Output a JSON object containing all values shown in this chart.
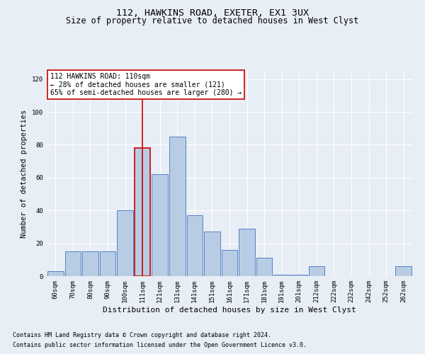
{
  "title": "112, HAWKINS ROAD, EXETER, EX1 3UX",
  "subtitle": "Size of property relative to detached houses in West Clyst",
  "xlabel": "Distribution of detached houses by size in West Clyst",
  "ylabel": "Number of detached properties",
  "categories": [
    "60sqm",
    "70sqm",
    "80sqm",
    "90sqm",
    "100sqm",
    "111sqm",
    "121sqm",
    "131sqm",
    "141sqm",
    "151sqm",
    "161sqm",
    "171sqm",
    "181sqm",
    "191sqm",
    "201sqm",
    "212sqm",
    "222sqm",
    "232sqm",
    "242sqm",
    "252sqm",
    "262sqm"
  ],
  "values": [
    3,
    15,
    15,
    15,
    40,
    78,
    62,
    85,
    37,
    27,
    16,
    29,
    11,
    1,
    1,
    6,
    0,
    0,
    0,
    0,
    6
  ],
  "highlight_index": 5,
  "bar_color": "#b8cce4",
  "bar_edge_color": "#4472c4",
  "highlight_bar_edge_color": "#cc0000",
  "vline_color": "#cc0000",
  "annotation_text": "112 HAWKINS ROAD: 110sqm\n← 28% of detached houses are smaller (121)\n65% of semi-detached houses are larger (280) →",
  "annotation_box_color": "#ffffff",
  "annotation_box_edge_color": "#cc0000",
  "ylim": [
    0,
    125
  ],
  "yticks": [
    0,
    20,
    40,
    60,
    80,
    100,
    120
  ],
  "background_color": "#e8eef5",
  "grid_color": "#ffffff",
  "footnote1": "Contains HM Land Registry data © Crown copyright and database right 2024.",
  "footnote2": "Contains public sector information licensed under the Open Government Licence v3.0.",
  "title_fontsize": 9.5,
  "subtitle_fontsize": 8.5,
  "xlabel_fontsize": 8,
  "ylabel_fontsize": 7.5,
  "tick_fontsize": 6.5,
  "annotation_fontsize": 7,
  "footnote_fontsize": 6
}
